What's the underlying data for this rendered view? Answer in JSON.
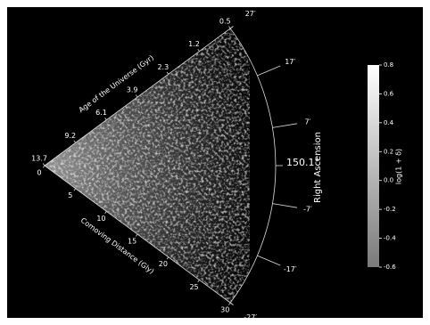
{
  "chart_data": {
    "type": "cone",
    "age_axis": {
      "label": "Age of the Universe (Gyr)",
      "ticks": [
        13.7,
        9.2,
        6.1,
        3.9,
        2.3,
        1.2,
        0.5
      ]
    },
    "distance_axis": {
      "label": "Comoving Distance (Gly)",
      "lim": [
        0,
        30
      ],
      "ticks": [
        0,
        5,
        10,
        15,
        20,
        25,
        30
      ]
    },
    "ra_axis": {
      "label": "Right Ascension",
      "lim": [
        -27,
        27
      ],
      "center": {
        "value": 150.1,
        "label": "150.1°"
      },
      "ticks": [
        {
          "value": 27,
          "label": "27′"
        },
        {
          "value": 17,
          "label": "17′"
        },
        {
          "value": 7,
          "label": "7′"
        },
        {
          "value": -7,
          "label": "-7′"
        },
        {
          "value": -17,
          "label": "-17′"
        },
        {
          "value": -27,
          "label": "-27′"
        }
      ]
    },
    "colorbar": {
      "label": "log(1 + δ)",
      "lim": [
        -0.6,
        0.8
      ],
      "colors": [
        "#7a7a7a",
        "#ffffff"
      ],
      "ticks": [
        0.8,
        0.6,
        0.4,
        0.2,
        {
          "value": 0,
          "label": "0.0"
        },
        -0.2,
        -0.4,
        -0.6
      ]
    }
  }
}
